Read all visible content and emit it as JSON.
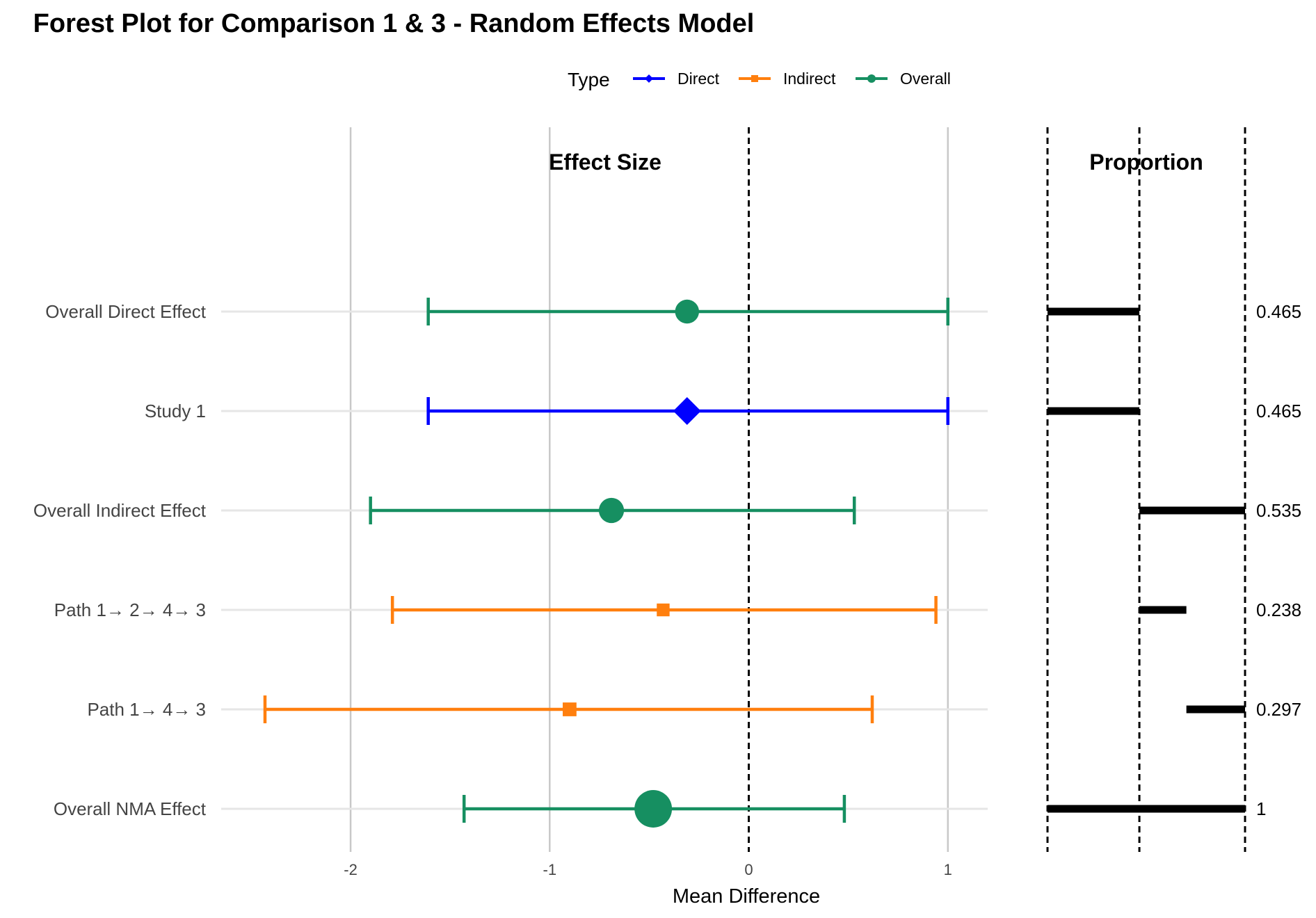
{
  "chart_data": {
    "type": "forest",
    "title": "Forest Plot for Comparison 1 & 3 - Random Effects Model",
    "panels": {
      "effect": "Effect Size",
      "proportion": "Proportion"
    },
    "xlabel": "Mean Difference",
    "xlim": [
      -2.65,
      1.2
    ],
    "xticks": [
      -2,
      -1,
      0,
      1
    ],
    "reference_line": 0,
    "grid": true,
    "legend": {
      "title": "Type",
      "placement": "top",
      "entries": [
        {
          "label": "Direct",
          "color": "#0000FF",
          "shape": "diamond"
        },
        {
          "label": "Indirect",
          "color": "#FF7F0E",
          "shape": "square"
        },
        {
          "label": "Overall",
          "color": "#168F61",
          "shape": "circle"
        }
      ]
    },
    "rows": [
      {
        "label": "Overall Direct Effect",
        "type": "Overall",
        "estimate": -0.31,
        "lower": -1.61,
        "upper": 1.0,
        "size": 0.465,
        "proportion": 0.465,
        "prop_label": "0.465",
        "prop_start": 0.0
      },
      {
        "label": "Study 1",
        "type": "Direct",
        "estimate": -0.31,
        "lower": -1.61,
        "upper": 1.0,
        "size": 0.465,
        "proportion": 0.465,
        "prop_label": "0.465",
        "prop_start": 0.0
      },
      {
        "label": "Overall Indirect Effect",
        "type": "Overall",
        "estimate": -0.69,
        "lower": -1.9,
        "upper": 0.53,
        "size": 0.535,
        "proportion": 0.535,
        "prop_label": "0.535",
        "prop_start": 0.465
      },
      {
        "label": "Path 1→ 2→ 4→ 3",
        "type": "Indirect",
        "estimate": -0.43,
        "lower": -1.79,
        "upper": 0.94,
        "size": 0.238,
        "proportion": 0.238,
        "prop_label": "0.238",
        "prop_start": 0.465
      },
      {
        "label": "Path 1→ 4→ 3",
        "type": "Indirect",
        "estimate": -0.9,
        "lower": -2.43,
        "upper": 0.62,
        "size": 0.297,
        "proportion": 0.297,
        "prop_label": "0.297",
        "prop_start": 0.703
      },
      {
        "label": "Overall NMA Effect",
        "type": "Overall",
        "estimate": -0.48,
        "lower": -1.43,
        "upper": 0.48,
        "size": 1.0,
        "proportion": 1.0,
        "prop_label": "1",
        "prop_start": 0.0
      }
    ],
    "proportion_dividers": [
      0,
      0.465,
      1
    ]
  }
}
